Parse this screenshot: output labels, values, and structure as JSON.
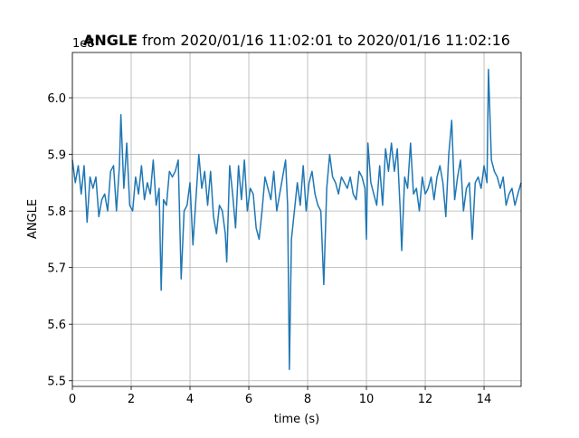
{
  "chart_data": {
    "type": "line",
    "title_bold": "ANGLE",
    "title": "from 2020/01/16 11:02:01 to 2020/01/16 11:02:16",
    "x_label": "time (s)",
    "y_label": "ANGLE",
    "offset_text": "1e8",
    "xlim": [
      0,
      15.26
    ],
    "ylim": [
      5.49,
      6.08
    ],
    "xticks": [
      0,
      2,
      4,
      6,
      8,
      10,
      12,
      14
    ],
    "yticks": [
      5.5,
      5.6,
      5.7,
      5.8,
      5.9,
      {
        "value": 6.0,
        "label": "6.0"
      }
    ],
    "grid": true,
    "series": [
      {
        "color": "#1f77b4",
        "x": [
          0,
          0.1,
          0.2,
          0.3,
          0.4,
          0.5,
          0.6,
          0.7,
          0.8,
          0.9,
          1.0,
          1.1,
          1.2,
          1.3,
          1.4,
          1.5,
          1.6,
          1.65,
          1.75,
          1.85,
          1.95,
          2.05,
          2.15,
          2.25,
          2.35,
          2.45,
          2.55,
          2.65,
          2.75,
          2.85,
          2.95,
          3.02,
          3.1,
          3.2,
          3.3,
          3.4,
          3.5,
          3.6,
          3.7,
          3.8,
          3.9,
          4.0,
          4.1,
          4.2,
          4.3,
          4.4,
          4.5,
          4.6,
          4.7,
          4.8,
          4.9,
          5.0,
          5.1,
          5.2,
          5.25,
          5.35,
          5.45,
          5.55,
          5.65,
          5.75,
          5.85,
          5.95,
          6.05,
          6.15,
          6.25,
          6.35,
          6.45,
          6.55,
          6.65,
          6.75,
          6.85,
          6.95,
          7.05,
          7.15,
          7.25,
          7.32,
          7.38,
          7.45,
          7.55,
          7.65,
          7.75,
          7.85,
          7.95,
          8.05,
          8.15,
          8.25,
          8.35,
          8.45,
          8.55,
          8.65,
          8.75,
          8.85,
          8.95,
          9.05,
          9.15,
          9.25,
          9.35,
          9.45,
          9.55,
          9.65,
          9.75,
          9.85,
          9.95,
          10.0,
          10.05,
          10.15,
          10.25,
          10.35,
          10.45,
          10.55,
          10.65,
          10.75,
          10.85,
          10.95,
          11.05,
          11.15,
          11.2,
          11.3,
          11.4,
          11.5,
          11.6,
          11.7,
          11.8,
          11.9,
          12.0,
          12.1,
          12.2,
          12.3,
          12.4,
          12.5,
          12.6,
          12.7,
          12.8,
          12.9,
          13.0,
          13.1,
          13.2,
          13.3,
          13.4,
          13.5,
          13.6,
          13.7,
          13.8,
          13.9,
          14.0,
          14.1,
          14.15,
          14.25,
          14.35,
          14.45,
          14.55,
          14.65,
          14.75,
          14.85,
          14.95,
          15.05,
          15.15,
          15.26
        ],
        "values": [
          5.89,
          5.85,
          5.88,
          5.83,
          5.88,
          5.78,
          5.86,
          5.84,
          5.86,
          5.79,
          5.82,
          5.83,
          5.8,
          5.87,
          5.88,
          5.8,
          5.88,
          5.97,
          5.84,
          5.92,
          5.81,
          5.8,
          5.86,
          5.83,
          5.88,
          5.82,
          5.85,
          5.83,
          5.89,
          5.81,
          5.84,
          5.66,
          5.82,
          5.81,
          5.87,
          5.86,
          5.87,
          5.89,
          5.68,
          5.8,
          5.81,
          5.85,
          5.74,
          5.82,
          5.9,
          5.84,
          5.87,
          5.81,
          5.87,
          5.79,
          5.76,
          5.81,
          5.8,
          5.76,
          5.71,
          5.88,
          5.83,
          5.77,
          5.88,
          5.82,
          5.89,
          5.8,
          5.84,
          5.83,
          5.77,
          5.75,
          5.8,
          5.86,
          5.84,
          5.82,
          5.87,
          5.8,
          5.83,
          5.86,
          5.89,
          5.81,
          5.52,
          5.75,
          5.8,
          5.85,
          5.81,
          5.88,
          5.8,
          5.85,
          5.87,
          5.83,
          5.81,
          5.8,
          5.67,
          5.84,
          5.9,
          5.86,
          5.85,
          5.83,
          5.86,
          5.85,
          5.84,
          5.86,
          5.83,
          5.82,
          5.87,
          5.86,
          5.84,
          5.75,
          5.92,
          5.85,
          5.83,
          5.81,
          5.88,
          5.81,
          5.91,
          5.87,
          5.92,
          5.87,
          5.91,
          5.8,
          5.73,
          5.86,
          5.84,
          5.92,
          5.83,
          5.84,
          5.8,
          5.86,
          5.83,
          5.84,
          5.86,
          5.82,
          5.86,
          5.88,
          5.85,
          5.79,
          5.9,
          5.96,
          5.82,
          5.86,
          5.89,
          5.8,
          5.84,
          5.85,
          5.75,
          5.85,
          5.86,
          5.84,
          5.88,
          5.85,
          6.05,
          5.89,
          5.87,
          5.86,
          5.84,
          5.86,
          5.81,
          5.83,
          5.84,
          5.81,
          5.83,
          5.85
        ]
      }
    ]
  }
}
